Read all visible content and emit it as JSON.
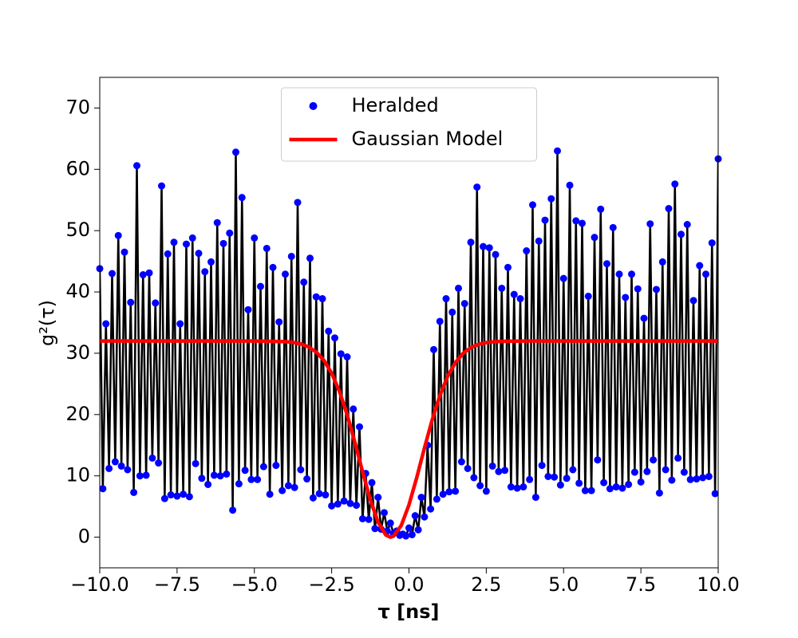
{
  "chart_data": {
    "type": "line",
    "xlabel": "τ [ns]",
    "ylabel": "g²(τ)",
    "xlim": [
      -10,
      10
    ],
    "xticks": [
      {
        "value": -10,
        "label": "−10.0"
      },
      {
        "value": -7.5,
        "label": "−7.5"
      },
      {
        "value": -5,
        "label": "−5.0"
      },
      {
        "value": -2.5,
        "label": "−2.5"
      },
      {
        "value": 0,
        "label": "0.0"
      },
      2.5,
      {
        "value": 5,
        "label": "5.0"
      },
      7.5,
      {
        "value": 10,
        "label": "10.0"
      }
    ],
    "ylim": [
      -5,
      75
    ],
    "yticks": [
      0,
      10,
      20,
      30,
      40,
      50,
      60,
      70
    ],
    "legend": "upper center",
    "series": [
      {
        "name": "Heralded",
        "color": "#0000ff",
        "line_color": "#000000",
        "x": [
          -10.0,
          -9.9,
          -9.8,
          -9.7,
          -9.6,
          -9.5,
          -9.4,
          -9.3,
          -9.2,
          -9.1,
          -9.0,
          -8.9,
          -8.8,
          -8.7,
          -8.6,
          -8.5,
          -8.4,
          -8.3,
          -8.2,
          -8.1,
          -8.0,
          -7.9,
          -7.8,
          -7.7,
          -7.6,
          -7.5,
          -7.4,
          -7.3,
          -7.2,
          -7.1,
          -7.0,
          -6.9,
          -6.8,
          -6.7,
          -6.6,
          -6.5,
          -6.4,
          -6.3,
          -6.2,
          -6.1,
          -6.0,
          -5.9,
          -5.8,
          -5.7,
          -5.6,
          -5.5,
          -5.4,
          -5.3,
          -5.2,
          -5.1,
          -5.0,
          -4.9,
          -4.8,
          -4.7,
          -4.6,
          -4.5,
          -4.4,
          -4.3,
          -4.2,
          -4.1,
          -4.0,
          -3.9,
          -3.8,
          -3.7,
          -3.6,
          -3.5,
          -3.4,
          -3.3,
          -3.2,
          -3.1,
          -3.0,
          -2.9,
          -2.8,
          -2.7,
          -2.6,
          -2.5,
          -2.4,
          -2.3,
          -2.2,
          -2.1,
          -2.0,
          -1.9,
          -1.8,
          -1.7,
          -1.6,
          -1.5,
          -1.4,
          -1.3,
          -1.2,
          -1.1,
          -1.0,
          -0.9,
          -0.8,
          -0.7,
          -0.6,
          -0.5,
          -0.4,
          -0.3,
          -0.2,
          -0.1,
          0.0,
          0.1,
          0.2,
          0.3,
          0.4,
          0.5,
          0.6,
          0.7,
          0.8,
          0.9,
          1.0,
          1.1,
          1.2,
          1.3,
          1.4,
          1.5,
          1.6,
          1.7,
          1.8,
          1.9,
          2.0,
          2.1,
          2.2,
          2.3,
          2.4,
          2.5,
          2.6,
          2.7,
          2.8,
          2.9,
          3.0,
          3.1,
          3.2,
          3.3,
          3.4,
          3.5,
          3.6,
          3.7,
          3.8,
          3.9,
          4.0,
          4.1,
          4.2,
          4.3,
          4.4,
          4.5,
          4.6,
          4.7,
          4.8,
          4.9,
          5.0,
          5.1,
          5.2,
          5.3,
          5.4,
          5.5,
          5.6,
          5.7,
          5.8,
          5.9,
          6.0,
          6.1,
          6.2,
          6.3,
          6.4,
          6.5,
          6.6,
          6.7,
          6.8,
          6.9,
          7.0,
          7.1,
          7.2,
          7.3,
          7.4,
          7.5,
          7.6,
          7.7,
          7.8,
          7.9,
          8.0,
          8.1,
          8.2,
          8.3,
          8.4,
          8.5,
          8.6,
          8.7,
          8.8,
          8.9,
          9.0,
          9.1,
          9.2,
          9.3,
          9.4,
          9.5,
          9.6,
          9.7,
          9.8,
          9.9,
          10.0
        ],
        "values": [
          43.8,
          7.9,
          34.8,
          11.2,
          43.0,
          12.3,
          49.2,
          11.6,
          46.5,
          11.0,
          38.3,
          7.3,
          60.6,
          10.0,
          42.8,
          10.1,
          43.1,
          12.9,
          38.2,
          12.1,
          57.3,
          6.3,
          46.2,
          6.9,
          48.1,
          6.7,
          34.8,
          7.0,
          47.8,
          6.6,
          48.8,
          12.0,
          46.3,
          9.6,
          43.3,
          8.6,
          44.9,
          10.1,
          51.3,
          10.0,
          47.9,
          10.3,
          49.6,
          4.4,
          62.8,
          8.7,
          55.4,
          10.9,
          37.1,
          9.4,
          48.8,
          9.4,
          40.9,
          11.5,
          47.1,
          7.0,
          44.0,
          11.7,
          35.1,
          7.6,
          42.9,
          8.4,
          45.8,
          8.1,
          54.6,
          11.0,
          41.6,
          9.5,
          45.5,
          6.4,
          39.2,
          7.1,
          38.9,
          6.9,
          33.6,
          5.1,
          32.5,
          5.4,
          29.9,
          5.9,
          29.4,
          5.5,
          20.9,
          5.2,
          18.0,
          3.0,
          10.4,
          2.9,
          8.9,
          1.4,
          6.5,
          1.3,
          4.0,
          1.0,
          2.3,
          0.6,
          1.0,
          0.3,
          0.5,
          0.2,
          1.5,
          0.4,
          3.5,
          1.2,
          6.5,
          3.3,
          15.0,
          4.6,
          30.6,
          6.2,
          35.2,
          7.0,
          38.9,
          7.4,
          36.7,
          7.5,
          40.6,
          12.3,
          38.1,
          11.2,
          48.1,
          9.7,
          57.1,
          8.4,
          47.4,
          7.5,
          47.2,
          11.6,
          46.1,
          10.7,
          40.6,
          10.9,
          44.0,
          8.2,
          39.6,
          8.0,
          38.9,
          8.2,
          46.7,
          9.4,
          54.2,
          6.5,
          48.3,
          11.7,
          51.7,
          9.9,
          55.2,
          9.8,
          63.0,
          8.5,
          42.2,
          9.6,
          57.4,
          11.0,
          51.6,
          8.8,
          51.2,
          7.6,
          39.3,
          7.6,
          48.9,
          12.6,
          53.5,
          8.9,
          44.6,
          7.9,
          50.5,
          8.2,
          42.9,
          8.0,
          39.1,
          8.6,
          42.9,
          10.6,
          40.5,
          9.0,
          35.7,
          10.7,
          51.1,
          12.6,
          40.4,
          7.2,
          44.9,
          11.0,
          53.6,
          9.3,
          57.6,
          12.9,
          49.4,
          10.6,
          51.0,
          9.4,
          38.6,
          9.5,
          44.3,
          9.7,
          42.9,
          9.9,
          48.0,
          7.1,
          61.7
        ]
      },
      {
        "name": "Gaussian Model",
        "color": "#ff0000",
        "x": [
          -10,
          -9,
          -8,
          -7,
          -6,
          -5,
          -4,
          -3.75,
          -3.5,
          -3.25,
          -3,
          -2.75,
          -2.5,
          -2.25,
          -2,
          -1.75,
          -1.5,
          -1.25,
          -1,
          -0.75,
          -0.6,
          -0.5,
          -0.25,
          0,
          0.25,
          0.5,
          0.75,
          1,
          1.25,
          1.5,
          1.75,
          2,
          2.25,
          2.5,
          2.75,
          3,
          4,
          5,
          6,
          7,
          8,
          9,
          10
        ],
        "values": [
          32,
          32,
          32,
          32,
          32,
          32,
          31.9,
          31.78,
          31.52,
          31.04,
          30.2,
          28.83,
          26.74,
          23.79,
          19.99,
          15.48,
          10.66,
          6.09,
          2.46,
          0.36,
          0,
          0.16,
          1.9,
          5.27,
          9.7,
          14.53,
          19.13,
          23.1,
          26.22,
          28.47,
          29.98,
          30.91,
          31.45,
          31.74,
          31.88,
          31.95,
          32,
          32,
          32,
          32,
          32,
          32,
          32
        ]
      }
    ]
  }
}
